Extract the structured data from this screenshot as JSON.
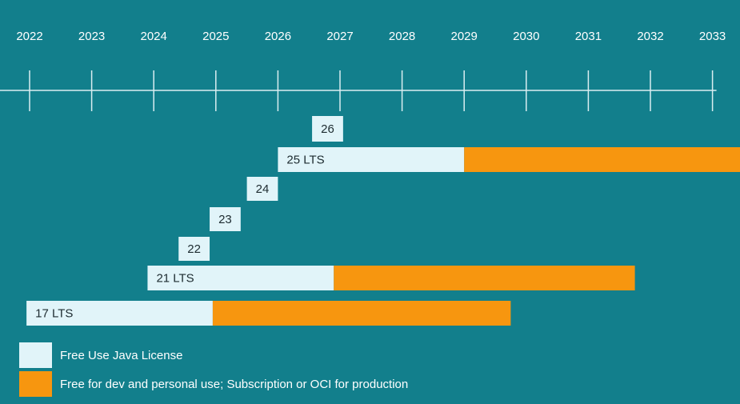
{
  "chart_data": {
    "type": "timeline-bar",
    "years": [
      "2022",
      "2023",
      "2024",
      "2025",
      "2026",
      "2027",
      "2028",
      "2029",
      "2030",
      "2031",
      "2032",
      "2033"
    ],
    "series": [
      {
        "name": "Free Use Java License",
        "color": "#e1f4f9"
      },
      {
        "name": "Free for dev and personal use; Subscription or OCI for production",
        "color": "#f7960f"
      }
    ],
    "releases": [
      {
        "label": "26",
        "start": 2026.55,
        "free_end": 2027.05,
        "paid_end": null
      },
      {
        "label": "25 LTS",
        "start": 2026.0,
        "free_end": 2029.0,
        "paid_end": 2033.6
      },
      {
        "label": "24",
        "start": 2025.5,
        "free_end": 2026.0,
        "paid_end": null
      },
      {
        "label": "23",
        "start": 2024.9,
        "free_end": 2025.4,
        "paid_end": null
      },
      {
        "label": "22",
        "start": 2024.4,
        "free_end": 2024.9,
        "paid_end": null
      },
      {
        "label": "21 LTS",
        "start": 2023.9,
        "free_end": 2026.9,
        "paid_end": 2031.75
      },
      {
        "label": "17 LTS",
        "start": 2021.95,
        "free_end": 2024.95,
        "paid_end": 2029.75
      }
    ]
  },
  "legend": {
    "free_label": "Free Use Java License",
    "paid_label": "Free for dev and personal use; Subscription or OCI for production"
  }
}
